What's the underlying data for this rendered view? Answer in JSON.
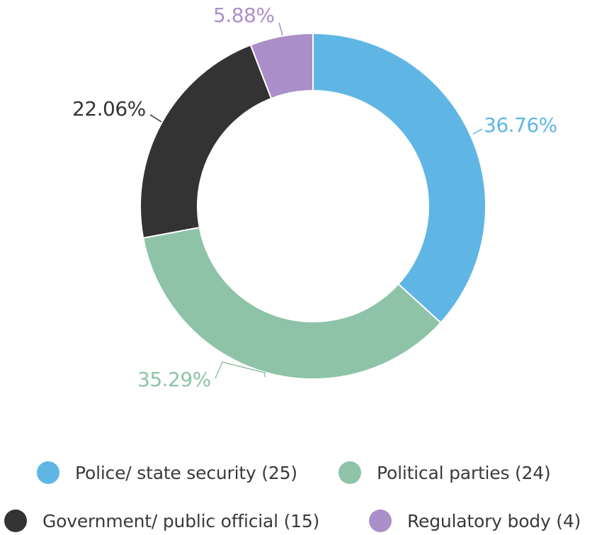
{
  "chart_data": {
    "type": "pie",
    "donut": true,
    "categories": [
      "Police/ state security",
      "Political parties",
      "Government/ public official",
      "Regulatory body"
    ],
    "values": [
      25,
      24,
      15,
      4
    ],
    "percent_labels": [
      "36.76%",
      "35.29%",
      "22.06%",
      "5.88%"
    ],
    "colors": [
      "#5fb6e5",
      "#8ec3a7",
      "#333333",
      "#ab8fc8"
    ],
    "legend_position": "bottom",
    "legend": [
      {
        "label": "Police/ state security (25)",
        "color": "#5fb6e5"
      },
      {
        "label": "Political parties (24)",
        "color": "#8ec3a7"
      },
      {
        "label": "Government/ public official (15)",
        "color": "#333333"
      },
      {
        "label": "Regulatory body (4)",
        "color": "#ab8fc8"
      }
    ]
  }
}
